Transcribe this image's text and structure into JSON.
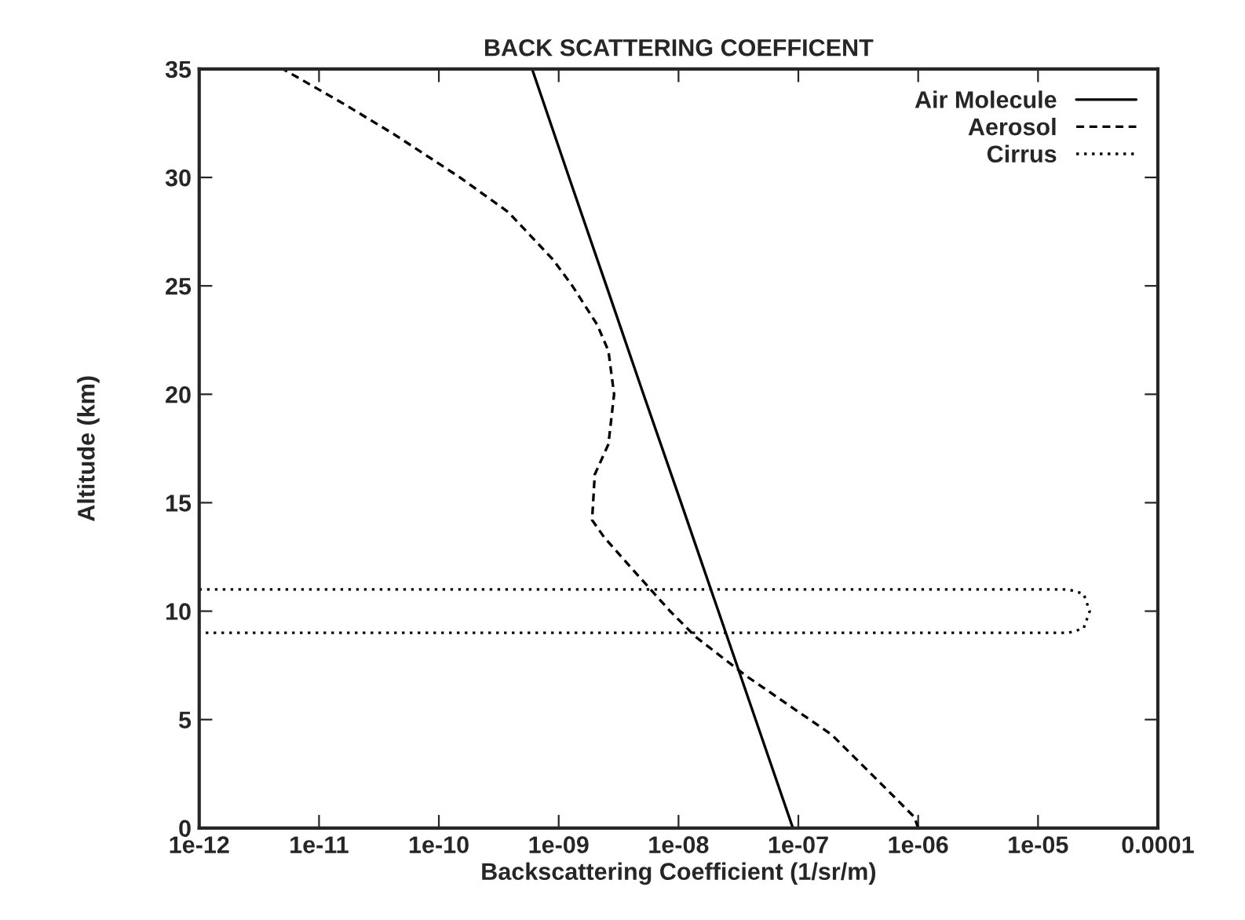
{
  "chart_data": {
    "type": "line",
    "title": "BACK SCATTERING COEFFICENT",
    "xlabel": "Backscattering Coefficient (1/sr/m)",
    "ylabel": "Altitude (km)",
    "log": "x",
    "legend": "top right",
    "grid": false,
    "xlim": [
      1e-12,
      0.0001
    ],
    "xticks": [
      {
        "value": 1e-12,
        "label": "1e-12"
      },
      {
        "value": 1e-11,
        "label": "1e-11"
      },
      {
        "value": 1e-10,
        "label": "1e-10"
      },
      {
        "value": 1e-09,
        "label": "1e-09"
      },
      {
        "value": 1e-08,
        "label": "1e-08"
      },
      {
        "value": 1e-07,
        "label": "1e-07"
      },
      {
        "value": 1e-06,
        "label": "1e-06"
      },
      {
        "value": 1e-05,
        "label": "1e-05"
      },
      {
        "value": 0.0001,
        "label": "0.0001"
      }
    ],
    "ylim": [
      0,
      35
    ],
    "yticks": [
      0,
      5,
      10,
      15,
      20,
      25,
      30,
      35
    ],
    "series": [
      {
        "name": "Air Molecule",
        "color": "#000000",
        "line_style": "solid",
        "x": [
          9e-08,
          4.4e-08,
          2.15e-08,
          1.05e-08,
          5.1e-09,
          2.5e-09,
          1.22e-09,
          6e-10
        ],
        "values": [
          0,
          5,
          10,
          15,
          20,
          25,
          30,
          35
        ]
      },
      {
        "name": "Aerosol",
        "color": "#000000",
        "line_style": "dashed",
        "x": [
          1e-06,
          9.3e-07,
          5.2e-07,
          1.9e-07,
          3.7e-08,
          1.4e-08,
          8.5e-09,
          4.5e-09,
          2.4e-09,
          1.9e-09,
          2e-09,
          2.6e-09,
          2.9e-09,
          2.6e-09,
          2.1e-09,
          1.3e-09,
          9e-10,
          3.8e-10,
          1.5e-10,
          4.2e-11,
          1.6e-11,
          5e-12
        ],
        "values": [
          0,
          0.5,
          1.9,
          4.3,
          7,
          8.8,
          10,
          11.7,
          13.4,
          14.2,
          16.3,
          17.7,
          20,
          22,
          23.2,
          25,
          26.2,
          28.4,
          30,
          32,
          33.4,
          35
        ]
      },
      {
        "name": "Cirrus",
        "color": "#000000",
        "line_style": "dotted",
        "x": [
          1e-12,
          1.8e-05,
          2.4e-05,
          2.7e-05,
          2.4e-05,
          1.8e-05,
          1e-12
        ],
        "values": [
          11,
          11,
          10.8,
          10,
          9.2,
          9,
          9
        ]
      }
    ]
  }
}
